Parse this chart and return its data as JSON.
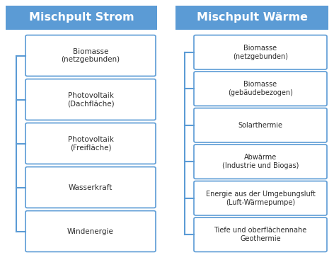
{
  "bg_color": "#ffffff",
  "header_bg": "#5b9bd5",
  "header_text_color": "#ffffff",
  "box_border_color": "#5b9bd5",
  "box_bg": "#ffffff",
  "box_text_color": "#2b2b2b",
  "line_color": "#5b9bd5",
  "left_title": "Mischpult Strom",
  "right_title": "Mischpult Wärme",
  "left_items": [
    "Biomasse\n(netzgebunden)",
    "Photovoltaik\n(Dachfläche)",
    "Photovoltaik\n(Freifläche)",
    "Wasserkraft",
    "Windenergie"
  ],
  "right_items": [
    "Biomasse\n(netzgebunden)",
    "Biomasse\n(gebäudebezogen)",
    "Solarthermie",
    "Abwärme\n(Industrie und Biogas)",
    "Energie aus der Umgebungsluft\n(Luft-Wärmepumpe)",
    "Tiefe und oberflächennahe\nGeothermie"
  ],
  "fig_width": 4.72,
  "fig_height": 3.67,
  "dpi": 100
}
